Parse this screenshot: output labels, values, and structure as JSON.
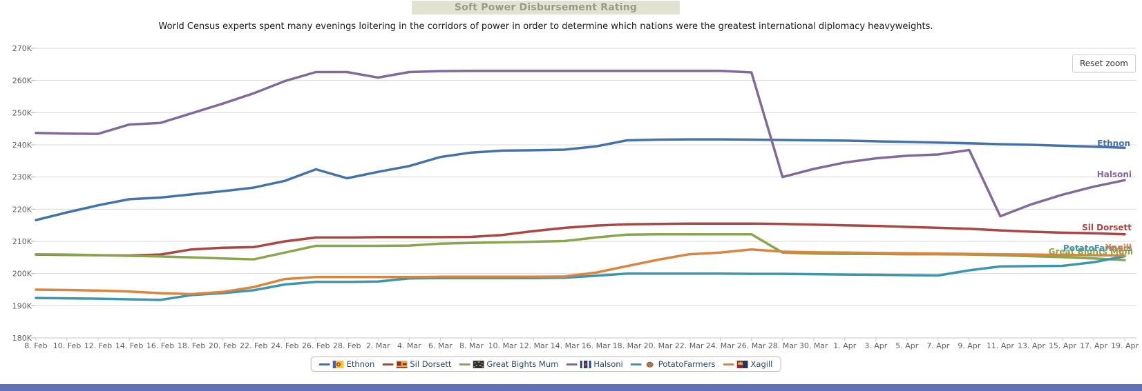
{
  "page": {
    "title": "Soft Power Disbursement Rating",
    "subtitle": "World Census experts spent many evenings loitering in the corridors of power in order to determine which nations were the greatest international diplomacy heavyweights.",
    "reset_zoom_label": "Reset zoom"
  },
  "chart_data": {
    "type": "line",
    "title": "Soft Power Disbursement Rating",
    "grid": true,
    "legend_position": "bottom",
    "ylim": [
      180000,
      270000
    ],
    "ytick_labels": [
      "180K",
      "190K",
      "200K",
      "210K",
      "220K",
      "230K",
      "240K",
      "250K",
      "260K",
      "270K"
    ],
    "x": [
      "8. Feb",
      "10. Feb",
      "12. Feb",
      "14. Feb",
      "16. Feb",
      "18. Feb",
      "20. Feb",
      "22. Feb",
      "24. Feb",
      "26. Feb",
      "28. Feb",
      "2. Mar",
      "4. Mar",
      "6. Mar",
      "8. Mar",
      "10. Mar",
      "12. Mar",
      "14. Mar",
      "16. Mar",
      "18. Mar",
      "20. Mar",
      "22. Mar",
      "24. Mar",
      "26. Mar",
      "28. Mar",
      "30. Mar",
      "1. Apr",
      "3. Apr",
      "5. Apr",
      "7. Apr",
      "9. Apr",
      "11. Apr",
      "13. Apr",
      "15. Apr",
      "17. Apr",
      "19. Apr"
    ],
    "series": [
      {
        "name": "Ethnon",
        "color": "#4572A7",
        "flag": "ethnon-flag",
        "values": [
          216600,
          219000,
          221200,
          223100,
          223600,
          224600,
          225600,
          226700,
          228800,
          232400,
          229600,
          231600,
          233400,
          236200,
          237600,
          238200,
          238300,
          238500,
          239500,
          241400,
          241600,
          241700,
          241700,
          241600,
          241500,
          241400,
          241300,
          241100,
          240900,
          240700,
          240500,
          240200,
          240000,
          239700,
          239400,
          239100
        ]
      },
      {
        "name": "Sil Dorsett",
        "color": "#AA4643",
        "flag": "sil-dorsett-flag",
        "values": [
          205900,
          205800,
          205700,
          205600,
          205900,
          207500,
          208000,
          208200,
          210000,
          211200,
          211200,
          211300,
          211300,
          211300,
          211400,
          212000,
          213200,
          214200,
          214900,
          215300,
          215400,
          215500,
          215500,
          215500,
          215400,
          215200,
          215000,
          214800,
          214500,
          214200,
          213900,
          213400,
          213000,
          212700,
          212500,
          212200
        ]
      },
      {
        "name": "Great Bights Mum",
        "color": "#89A54E",
        "flag": "great-bights-mum-flag",
        "values": [
          206000,
          205900,
          205700,
          205500,
          205300,
          205000,
          204700,
          204400,
          206500,
          208600,
          208600,
          208600,
          208700,
          209300,
          209500,
          209700,
          209900,
          210100,
          211200,
          212100,
          212200,
          212200,
          212200,
          212200,
          206500,
          206200,
          206100,
          206100,
          206000,
          206000,
          205900,
          205700,
          205400,
          205100,
          204700,
          204200
        ]
      },
      {
        "name": "Halsoni",
        "color": "#80699B",
        "flag": "halsoni-flag",
        "values": [
          243700,
          243500,
          243400,
          246300,
          246800,
          249800,
          252800,
          256000,
          259800,
          262600,
          262600,
          260900,
          262600,
          262900,
          263000,
          263000,
          263000,
          263000,
          263000,
          263000,
          263000,
          263000,
          263000,
          262500,
          230000,
          232500,
          234500,
          235800,
          236600,
          237000,
          238400,
          217800,
          221500,
          224500,
          227000,
          229000
        ]
      },
      {
        "name": "PotatoFarmers",
        "color": "#3D96AE",
        "flag": "potatofarmers-icon",
        "values": [
          192400,
          192300,
          192200,
          192000,
          191800,
          193300,
          193900,
          194800,
          196600,
          197400,
          197400,
          197500,
          198500,
          198600,
          198600,
          198600,
          198600,
          198700,
          199300,
          200000,
          200000,
          200000,
          200000,
          199900,
          199900,
          199800,
          199700,
          199600,
          199500,
          199400,
          201000,
          202200,
          202300,
          202400,
          203500,
          205400
        ]
      },
      {
        "name": "Xagill",
        "color": "#DB843D",
        "flag": "xagill-flag",
        "values": [
          195000,
          194900,
          194700,
          194400,
          193900,
          193600,
          194300,
          195800,
          198300,
          198900,
          198900,
          198900,
          198900,
          199000,
          199000,
          199000,
          199000,
          199100,
          200300,
          202300,
          204300,
          206000,
          206500,
          207500,
          206800,
          206600,
          206500,
          206400,
          206300,
          206200,
          206100,
          206000,
          205900,
          205800,
          205700,
          205600
        ]
      }
    ]
  }
}
